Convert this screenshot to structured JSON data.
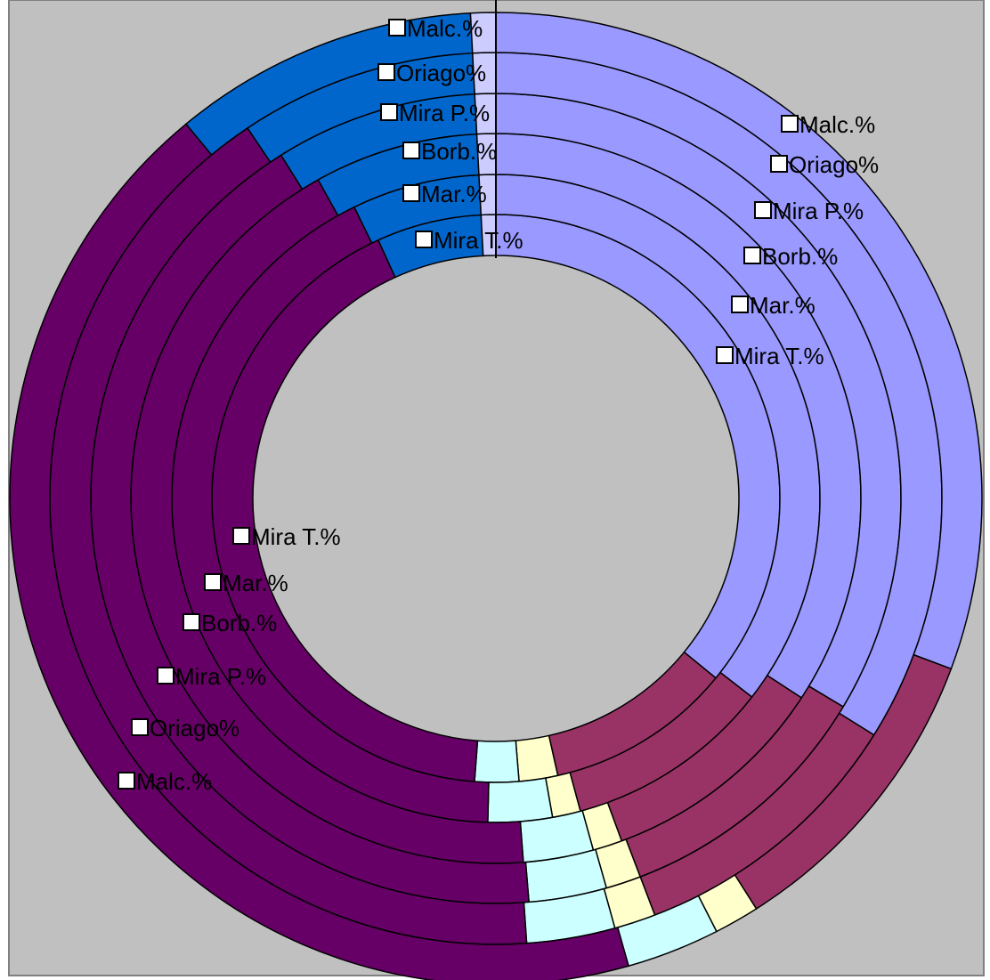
{
  "chart_data": {
    "type": "doughnut",
    "background": "#c0c0c0",
    "series": [
      {
        "name": "Mira T.%",
        "values": [
          35.9,
          10.6,
          2.2,
          2.5,
          42.0,
          6.8
        ]
      },
      {
        "name": "Mar.%",
        "values": [
          35.5,
          10.3,
          1.4,
          3.2,
          42.4,
          7.2
        ]
      },
      {
        "name": "Borb.%",
        "values": [
          34.2,
          10.2,
          1.3,
          3.1,
          43.1,
          8.1
        ]
      },
      {
        "name": "Mira P.%",
        "values": [
          33.6,
          10.6,
          1.4,
          3.1,
          42.4,
          8.9
        ]
      },
      {
        "name": "Oriago%",
        "values": [
          33.9,
          10.3,
          1.5,
          3.2,
          41.7,
          9.4
        ]
      },
      {
        "name": "Malc.%",
        "values": [
          30.7,
          10.3,
          1.5,
          3.1,
          43.4,
          11.0
        ]
      }
    ],
    "segment_colors": [
      "#9999ff",
      "#993366",
      "#ffffcc",
      "#ccffff",
      "#660066",
      "#ff8080",
      "#0066cc",
      "#ccccff"
    ],
    "label_groups": [
      {
        "labels": [
          "Malc.%",
          "Oriago%",
          "Mira P.%",
          "Borb.%",
          "Mar.%",
          "Mira T.%"
        ]
      },
      {
        "labels": [
          "Malc.%",
          "Oriago%",
          "Mira P.%",
          "Borb.%",
          "Mar.%",
          "Mira T.%"
        ]
      },
      {
        "labels": [
          "Mira T.%",
          "Mar.%",
          "Borb.%",
          "Mira P.%",
          "Oriago%",
          "Malc.%"
        ]
      }
    ]
  }
}
